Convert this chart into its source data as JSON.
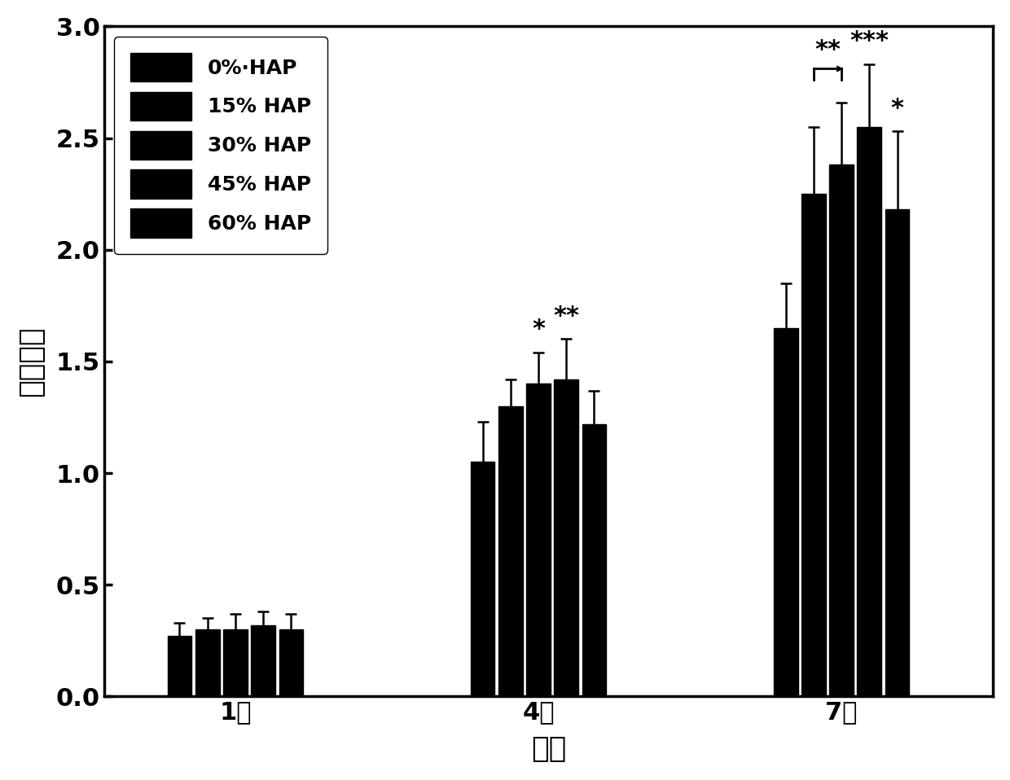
{
  "groups": [
    "1天",
    "4天",
    "7天"
  ],
  "series_labels": [
    "0%·HAP",
    "15% HAP",
    "30% HAP",
    "45% HAP",
    "60% HAP"
  ],
  "values": [
    [
      0.27,
      0.3,
      0.3,
      0.32,
      0.3
    ],
    [
      1.05,
      1.3,
      1.4,
      1.42,
      1.22
    ],
    [
      1.65,
      2.25,
      2.38,
      2.55,
      2.18
    ]
  ],
  "errors": [
    [
      0.06,
      0.05,
      0.07,
      0.06,
      0.07
    ],
    [
      0.18,
      0.12,
      0.14,
      0.18,
      0.15
    ],
    [
      0.2,
      0.3,
      0.28,
      0.28,
      0.35
    ]
  ],
  "ylabel": "吸光度值",
  "xlabel": "时间",
  "ylim": [
    0.0,
    3.0
  ],
  "yticks": [
    0.0,
    0.5,
    1.0,
    1.5,
    2.0,
    2.5,
    3.0
  ],
  "background_color": "#ffffff",
  "label_fontsize": 26,
  "tick_fontsize": 22,
  "legend_fontsize": 18,
  "annotation_fontsize": 22
}
